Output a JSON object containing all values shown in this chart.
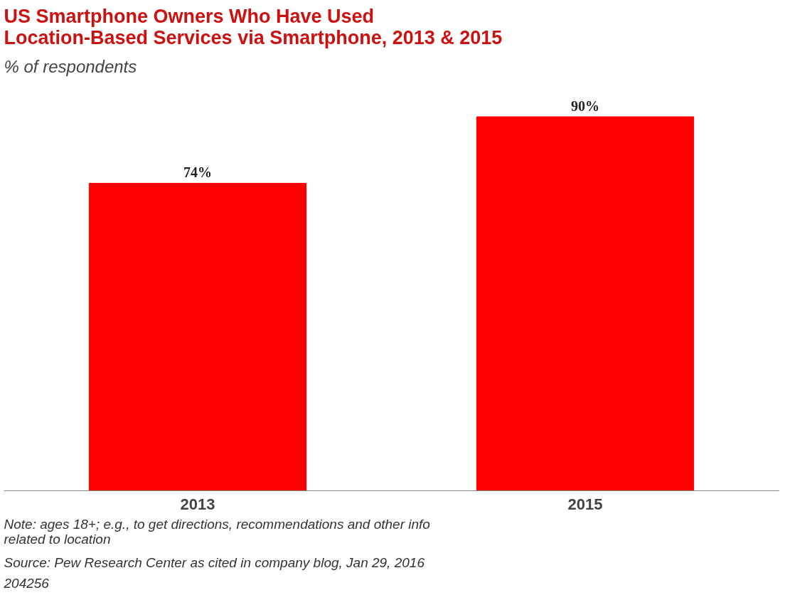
{
  "chart_data": {
    "type": "bar",
    "title": "US Smartphone Owners Who Have Used\nLocation-Based Services via Smartphone, 2013 & 2015",
    "subtitle": "% of respondents",
    "categories": [
      "2013",
      "2015"
    ],
    "values": [
      74,
      90
    ],
    "value_labels": [
      "74%",
      "90%"
    ],
    "color": "#ff0000",
    "grid": false,
    "annotations": [
      "Note: ages 18+; e.g., to get directions, recommendations and other info\nrelated to location",
      "Source: Pew Research Center as cited in company blog, Jan 29, 2016",
      "204256"
    ]
  }
}
